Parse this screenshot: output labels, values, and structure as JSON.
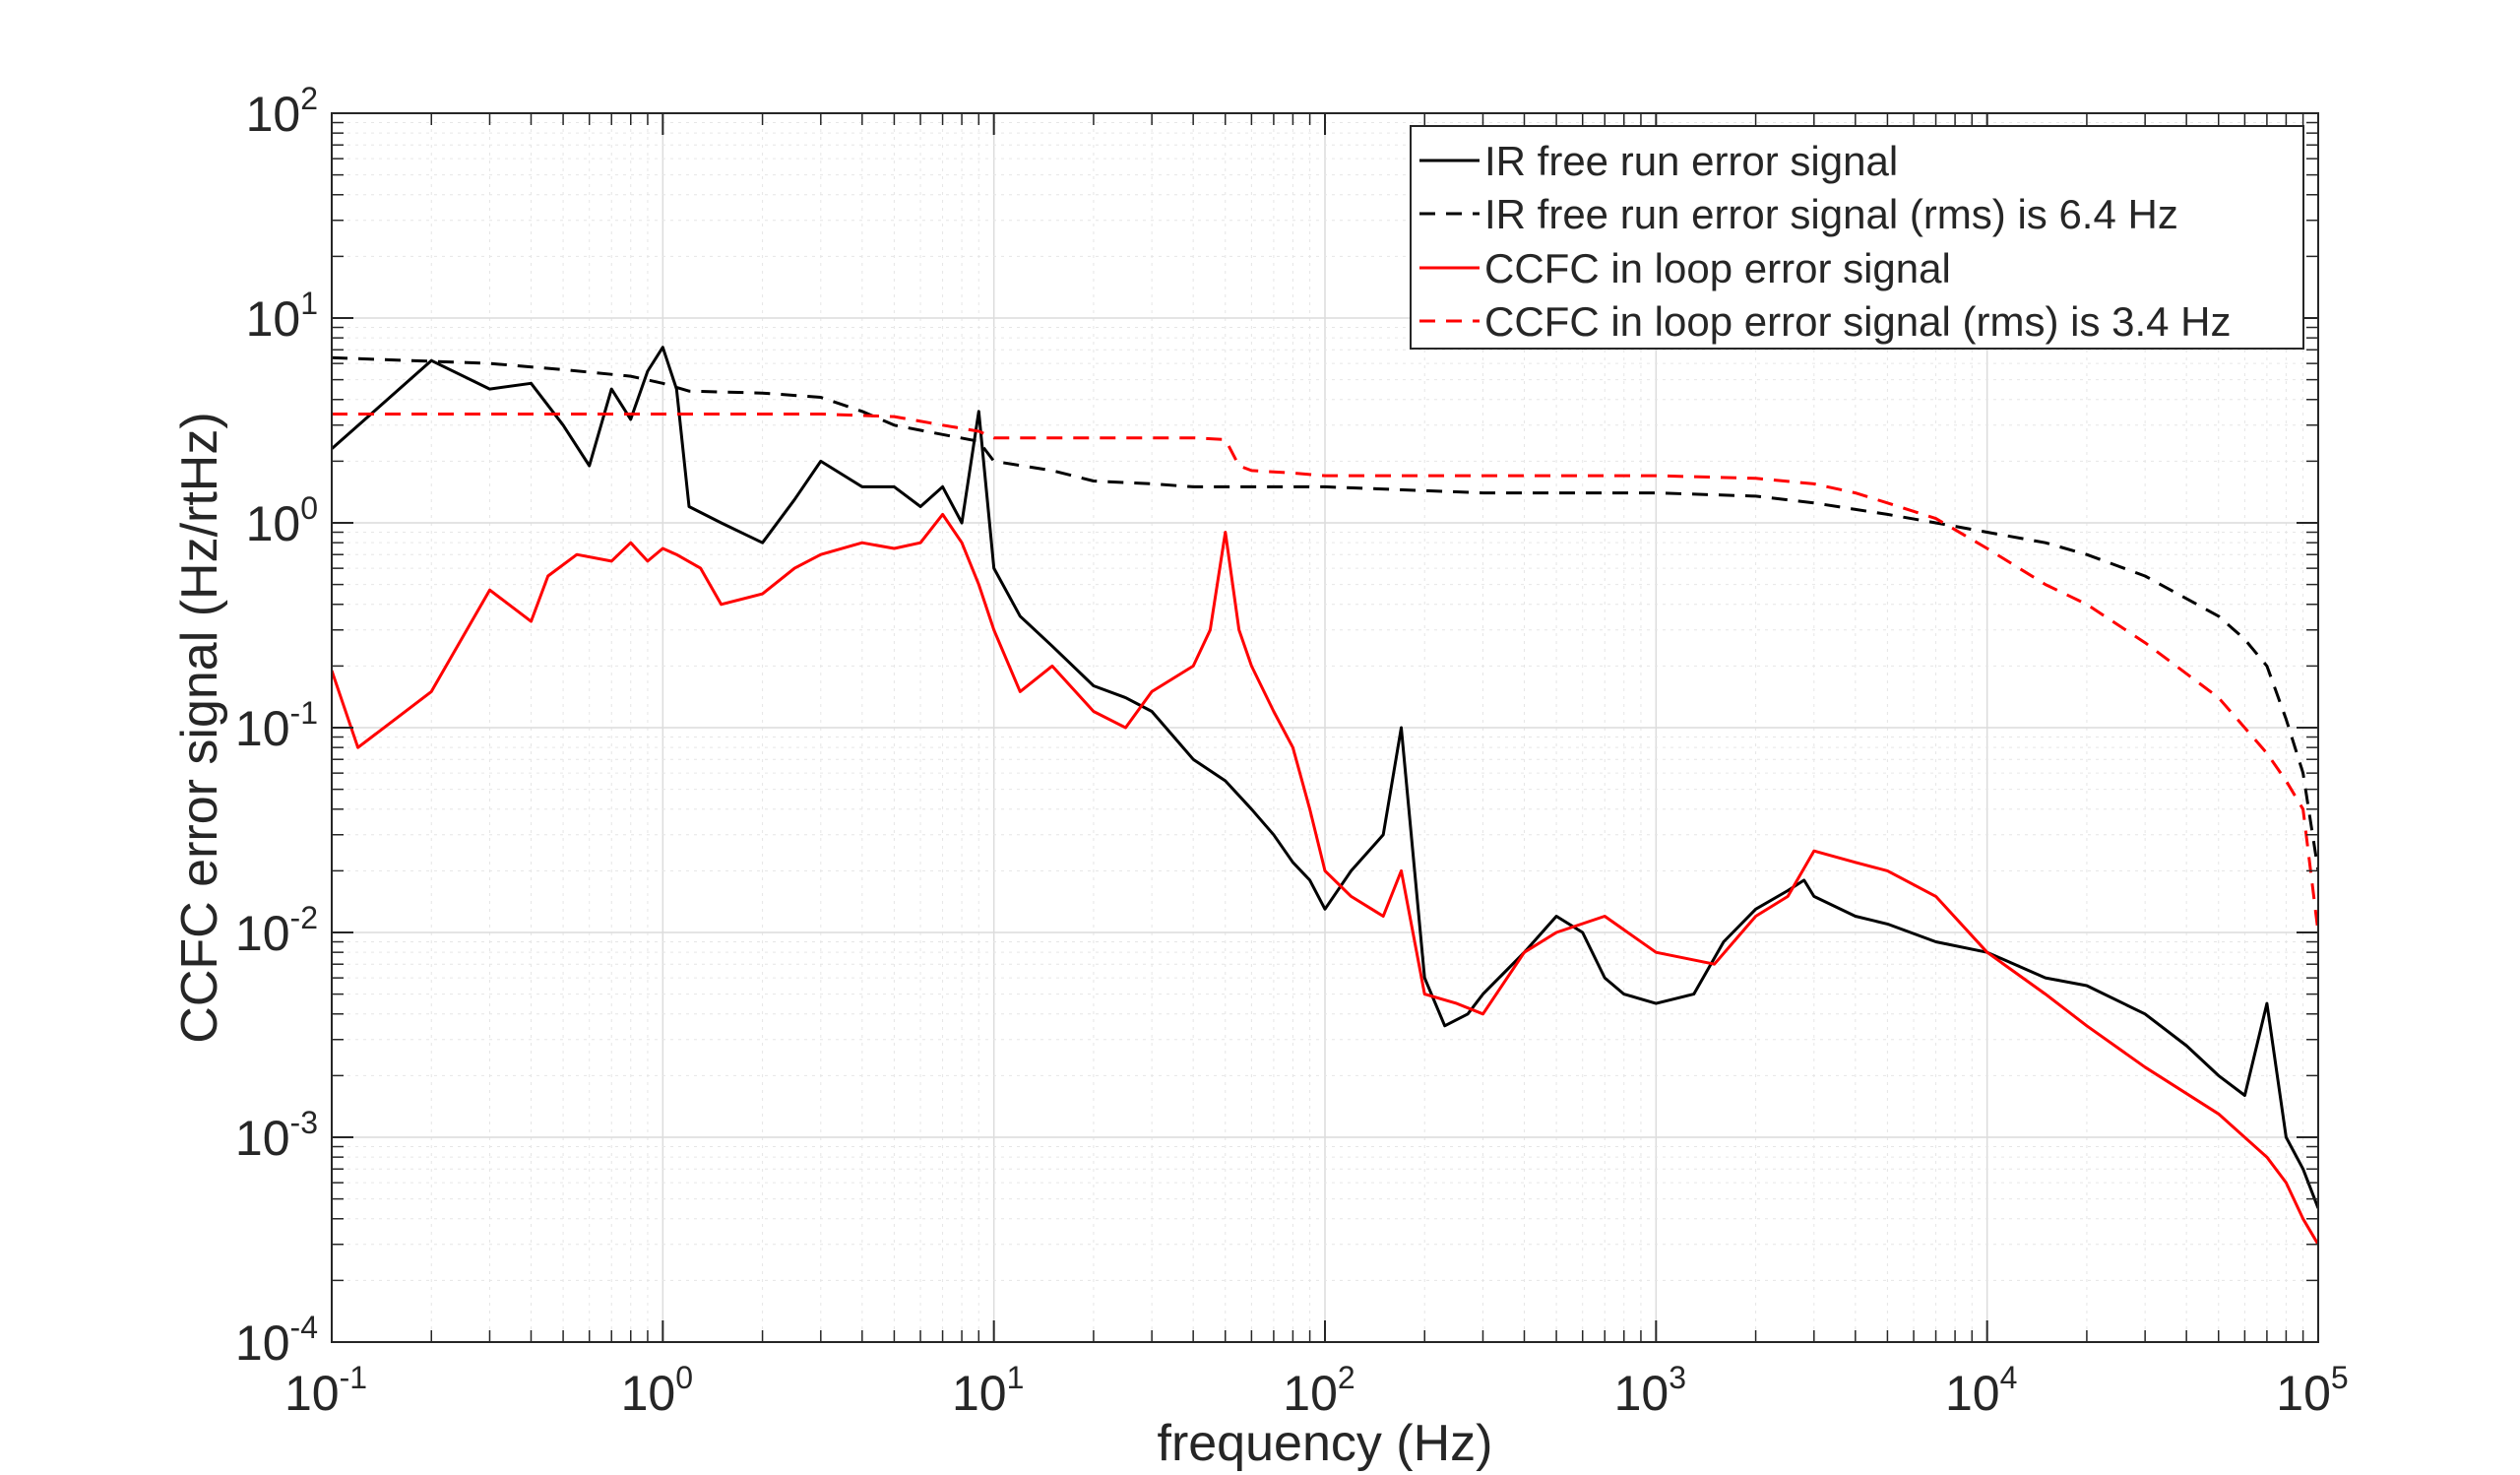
{
  "chart_data": {
    "type": "line",
    "xlabel": "frequency (Hz)",
    "ylabel": "CCFC error signal (Hz/rtHz)",
    "x_scale": "log",
    "y_scale": "log",
    "xlim": [
      0.1,
      100000
    ],
    "ylim": [
      0.0001,
      100
    ],
    "grid": true,
    "minor_grid": true,
    "legend_position": "top-right",
    "x_ticks": [
      {
        "base": "10",
        "exp": "-1"
      },
      {
        "base": "10",
        "exp": "0"
      },
      {
        "base": "10",
        "exp": "1"
      },
      {
        "base": "10",
        "exp": "2"
      },
      {
        "base": "10",
        "exp": "3"
      },
      {
        "base": "10",
        "exp": "4"
      },
      {
        "base": "10",
        "exp": "5"
      }
    ],
    "y_ticks": [
      {
        "base": "10",
        "exp": "-4"
      },
      {
        "base": "10",
        "exp": "-3"
      },
      {
        "base": "10",
        "exp": "-2"
      },
      {
        "base": "10",
        "exp": "-1"
      },
      {
        "base": "10",
        "exp": "0"
      },
      {
        "base": "10",
        "exp": "1"
      },
      {
        "base": "10",
        "exp": "2"
      }
    ],
    "series": [
      {
        "name": "IR free run error signal",
        "color": "#000000",
        "style": "solid",
        "x": [
          0.1,
          0.2,
          0.3,
          0.4,
          0.5,
          0.6,
          0.7,
          0.8,
          0.9,
          1.0,
          1.1,
          1.2,
          1.5,
          2,
          2.5,
          3,
          4,
          5,
          6,
          7,
          8,
          9,
          10,
          12,
          15,
          20,
          25,
          30,
          40,
          50,
          60,
          70,
          80,
          90,
          100,
          120,
          150,
          170,
          200,
          230,
          270,
          300,
          400,
          500,
          600,
          700,
          800,
          1000,
          1300,
          1600,
          2000,
          2500,
          2800,
          3000,
          4000,
          5000,
          7000,
          10000,
          15000,
          20000,
          30000,
          40000,
          50000,
          60000,
          70000,
          80000,
          90000,
          100000
        ],
        "y": [
          2.3,
          6.2,
          4.5,
          4.8,
          3.0,
          1.9,
          4.5,
          3.2,
          5.5,
          7.2,
          4.5,
          1.2,
          1.0,
          0.8,
          1.3,
          2.0,
          1.5,
          1.5,
          1.2,
          1.5,
          1.0,
          3.5,
          0.6,
          0.35,
          0.25,
          0.16,
          0.14,
          0.12,
          0.07,
          0.055,
          0.04,
          0.03,
          0.022,
          0.018,
          0.013,
          0.02,
          0.03,
          0.1,
          0.006,
          0.0035,
          0.004,
          0.005,
          0.008,
          0.012,
          0.01,
          0.006,
          0.005,
          0.0045,
          0.005,
          0.009,
          0.013,
          0.016,
          0.018,
          0.015,
          0.012,
          0.011,
          0.009,
          0.008,
          0.006,
          0.0055,
          0.004,
          0.0028,
          0.002,
          0.0016,
          0.0045,
          0.001,
          0.0007,
          0.00045
        ]
      },
      {
        "name": "IR free run error signal (rms) is 6.4 Hz",
        "color": "#000000",
        "style": "dashed",
        "x": [
          0.1,
          0.3,
          0.5,
          0.8,
          1.0,
          1.2,
          2,
          3,
          4,
          5,
          7,
          9,
          10,
          15,
          20,
          30,
          40,
          50,
          70,
          100,
          300,
          1000,
          2000,
          3000,
          5000,
          7000,
          10000,
          15000,
          20000,
          30000,
          50000,
          60000,
          70000,
          80000,
          90000,
          100000
        ],
        "y": [
          6.4,
          6.0,
          5.6,
          5.2,
          4.8,
          4.4,
          4.3,
          4.1,
          3.5,
          3.0,
          2.7,
          2.5,
          2.0,
          1.8,
          1.6,
          1.55,
          1.5,
          1.5,
          1.5,
          1.5,
          1.4,
          1.4,
          1.35,
          1.25,
          1.1,
          1.0,
          0.9,
          0.8,
          0.7,
          0.55,
          0.35,
          0.27,
          0.2,
          0.11,
          0.06,
          0.02
        ]
      },
      {
        "name": "CCFC in loop error signal",
        "color": "#ff0000",
        "style": "solid",
        "x": [
          0.1,
          0.12,
          0.2,
          0.3,
          0.4,
          0.45,
          0.55,
          0.7,
          0.8,
          0.9,
          1.0,
          1.1,
          1.3,
          1.5,
          2,
          2.5,
          3,
          4,
          5,
          6,
          7,
          8,
          9,
          10,
          12,
          15,
          20,
          25,
          30,
          40,
          45,
          50,
          55,
          60,
          70,
          80,
          90,
          100,
          120,
          150,
          170,
          200,
          250,
          300,
          400,
          500,
          700,
          1000,
          1500,
          2000,
          2500,
          3000,
          4000,
          5000,
          7000,
          10000,
          15000,
          20000,
          30000,
          50000,
          70000,
          80000,
          90000,
          100000
        ],
        "y": [
          0.19,
          0.08,
          0.15,
          0.47,
          0.33,
          0.55,
          0.7,
          0.65,
          0.8,
          0.65,
          0.75,
          0.7,
          0.6,
          0.4,
          0.45,
          0.6,
          0.7,
          0.8,
          0.75,
          0.8,
          1.1,
          0.8,
          0.5,
          0.3,
          0.15,
          0.2,
          0.12,
          0.1,
          0.15,
          0.2,
          0.3,
          0.9,
          0.3,
          0.2,
          0.12,
          0.08,
          0.04,
          0.02,
          0.015,
          0.012,
          0.02,
          0.005,
          0.0045,
          0.004,
          0.008,
          0.01,
          0.012,
          0.008,
          0.007,
          0.012,
          0.015,
          0.025,
          0.022,
          0.02,
          0.015,
          0.008,
          0.005,
          0.0035,
          0.0022,
          0.0013,
          0.0008,
          0.0006,
          0.0004,
          0.0003
        ]
      },
      {
        "name": "CCFC in loop error signal (rms) is 3.4 Hz",
        "color": "#ff0000",
        "style": "dashed",
        "x": [
          0.1,
          1,
          3,
          5,
          7,
          9,
          10,
          15,
          20,
          30,
          40,
          50,
          55,
          60,
          80,
          100,
          300,
          1000,
          2000,
          3000,
          4000,
          5000,
          7000,
          10000,
          15000,
          20000,
          30000,
          50000,
          70000,
          80000,
          90000,
          100000
        ],
        "y": [
          3.4,
          3.4,
          3.4,
          3.3,
          3.0,
          2.8,
          2.6,
          2.6,
          2.6,
          2.6,
          2.6,
          2.55,
          1.9,
          1.8,
          1.75,
          1.7,
          1.7,
          1.7,
          1.65,
          1.55,
          1.4,
          1.25,
          1.05,
          0.75,
          0.5,
          0.4,
          0.26,
          0.14,
          0.075,
          0.055,
          0.04,
          0.01
        ]
      }
    ]
  }
}
